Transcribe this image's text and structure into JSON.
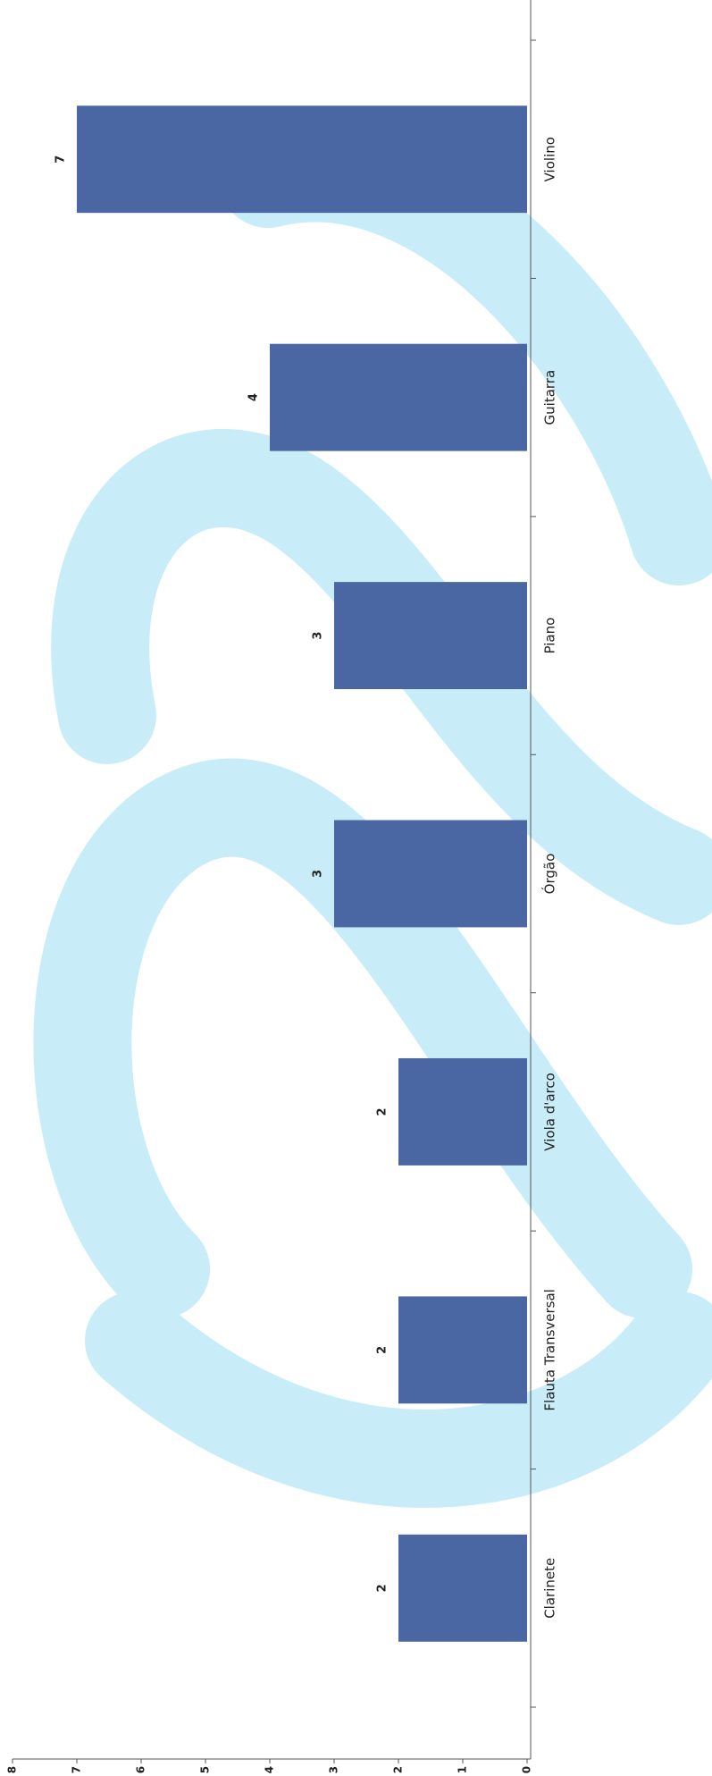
{
  "chart_data": {
    "type": "bar",
    "orientation": "horizontal",
    "categories": [
      "Clarinete",
      "Flauta Transversal",
      "Viola d'arco",
      "Órgão",
      "Piano",
      "Guitarra",
      "Violino"
    ],
    "values": [
      2,
      2,
      2,
      3,
      3,
      4,
      7
    ],
    "color": "#4a67a4",
    "ylim": [
      0,
      8
    ],
    "yticks": [
      0,
      1,
      2,
      3,
      4,
      5,
      6,
      7,
      8
    ]
  }
}
